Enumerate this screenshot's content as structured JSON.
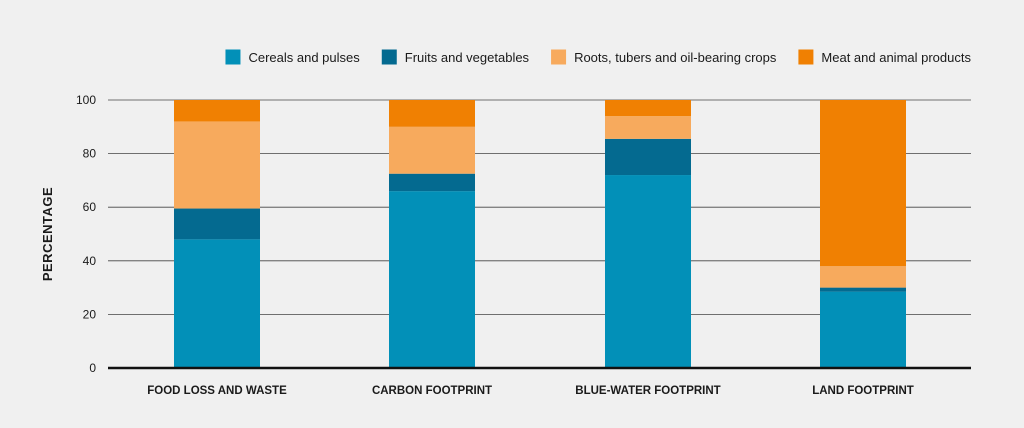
{
  "chart_data": {
    "type": "bar",
    "stacked": true,
    "categories": [
      "FOOD LOSS AND WASTE",
      "CARBON FOOTPRINT",
      "BLUE-WATER FOOTPRINT",
      "LAND FOOTPRINT"
    ],
    "series": [
      {
        "name": "Cereals and pulses",
        "color": "#0290b8",
        "values": [
          48,
          66,
          72,
          28.5
        ]
      },
      {
        "name": "Fruits and vegetables",
        "color": "#046a90",
        "values": [
          11.5,
          6.5,
          13.5,
          1.5
        ]
      },
      {
        "name": "Roots, tubers and oil-bearing crops",
        "color": "#f7aa5d",
        "values": [
          32.5,
          17.5,
          8.5,
          8
        ]
      },
      {
        "name": "Meat and animal products",
        "color": "#f08002",
        "values": [
          8,
          10,
          6,
          62
        ]
      }
    ],
    "ylabel": "PERCENTAGE",
    "xlabel": "",
    "ylim": [
      0,
      100
    ],
    "yticks": [
      0,
      20,
      40,
      60,
      80,
      100
    ],
    "grid": true,
    "legend": "top-right"
  }
}
